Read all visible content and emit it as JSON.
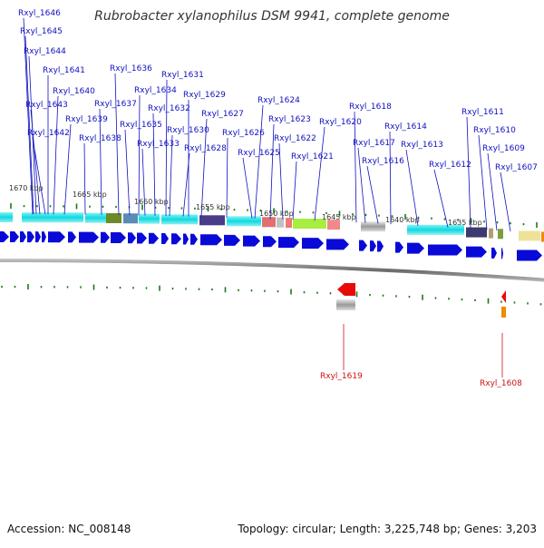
{
  "title": "Rubrobacter xylanophilus DSM 9941, complete genome",
  "footer": {
    "accession": "Accession: NC_008148",
    "topology": "Topology: circular; Length: 3,225,748 bp; Genes: 3,203"
  },
  "kbp_ticks": [
    "1670 kbp",
    "1665 kbp",
    "1660 kbp",
    "1655 kbp",
    "1650 kbp",
    "1645 kbp",
    "1640 kbp",
    "1635 kbp"
  ],
  "forward_genes": [
    "Rxyl_1646",
    "Rxyl_1645",
    "Rxyl_1644",
    "Rxyl_1643",
    "Rxyl_1642",
    "Rxyl_1641",
    "Rxyl_1640",
    "Rxyl_1639",
    "Rxyl_1638",
    "Rxyl_1637",
    "Rxyl_1636",
    "Rxyl_1635",
    "Rxyl_1634",
    "Rxyl_1633",
    "Rxyl_1632",
    "Rxyl_1631",
    "Rxyl_1630",
    "Rxyl_1629",
    "Rxyl_1628",
    "Rxyl_1627",
    "Rxyl_1626",
    "Rxyl_1625",
    "Rxyl_1624",
    "Rxyl_1623",
    "Rxyl_1622",
    "Rxyl_1621",
    "Rxyl_1620",
    "Rxyl_1618",
    "Rxyl_1617",
    "Rxyl_1616",
    "Rxyl_1614",
    "Rxyl_1613",
    "Rxyl_1612",
    "Rxyl_1611",
    "Rxyl_1610",
    "Rxyl_1609",
    "Rxyl_1607"
  ],
  "reverse_genes": [
    "Rxyl_1619",
    "Rxyl_1608"
  ],
  "colors": {
    "forward_label": "#1010c0",
    "reverse_label": "#d01010",
    "forward_gene": "#0a0ad8",
    "reverse_gene": "#e80a0a",
    "tick": "#1a7a1a",
    "backbone": "#808080"
  }
}
